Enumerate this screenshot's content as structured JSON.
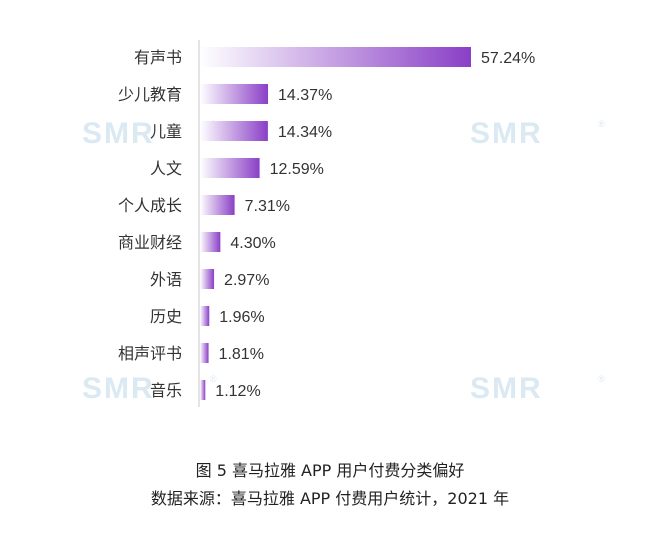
{
  "chart_data": {
    "type": "bar",
    "orientation": "horizontal",
    "categories": [
      "有声书",
      "少儿教育",
      "儿童",
      "人文",
      "个人成长",
      "商业财经",
      "外语",
      "历史",
      "相声评书",
      "音乐"
    ],
    "values": [
      57.24,
      14.37,
      14.34,
      12.59,
      7.31,
      4.3,
      2.97,
      1.96,
      1.81,
      1.12
    ],
    "value_labels": [
      "57.24%",
      "14.37%",
      "14.34%",
      "12.59%",
      "7.31%",
      "4.30%",
      "2.97%",
      "1.96%",
      "1.81%",
      "1.12%"
    ],
    "unit": "%",
    "xlim": [
      0,
      57.24
    ],
    "grid": false,
    "legend": "none",
    "colors": {
      "bar_start": "#ffffff",
      "bar_end": "#8a3fc6",
      "axis": "#c8c8c8",
      "text": "#333333",
      "watermark": "#dbe9f3"
    }
  },
  "caption": {
    "title": "图 5  喜马拉雅 APP 用户付费分类偏好",
    "source": "数据来源：喜马拉雅 APP 付费用户统计，2021 年"
  },
  "watermark": {
    "text": "SMR",
    "mark": "®"
  }
}
